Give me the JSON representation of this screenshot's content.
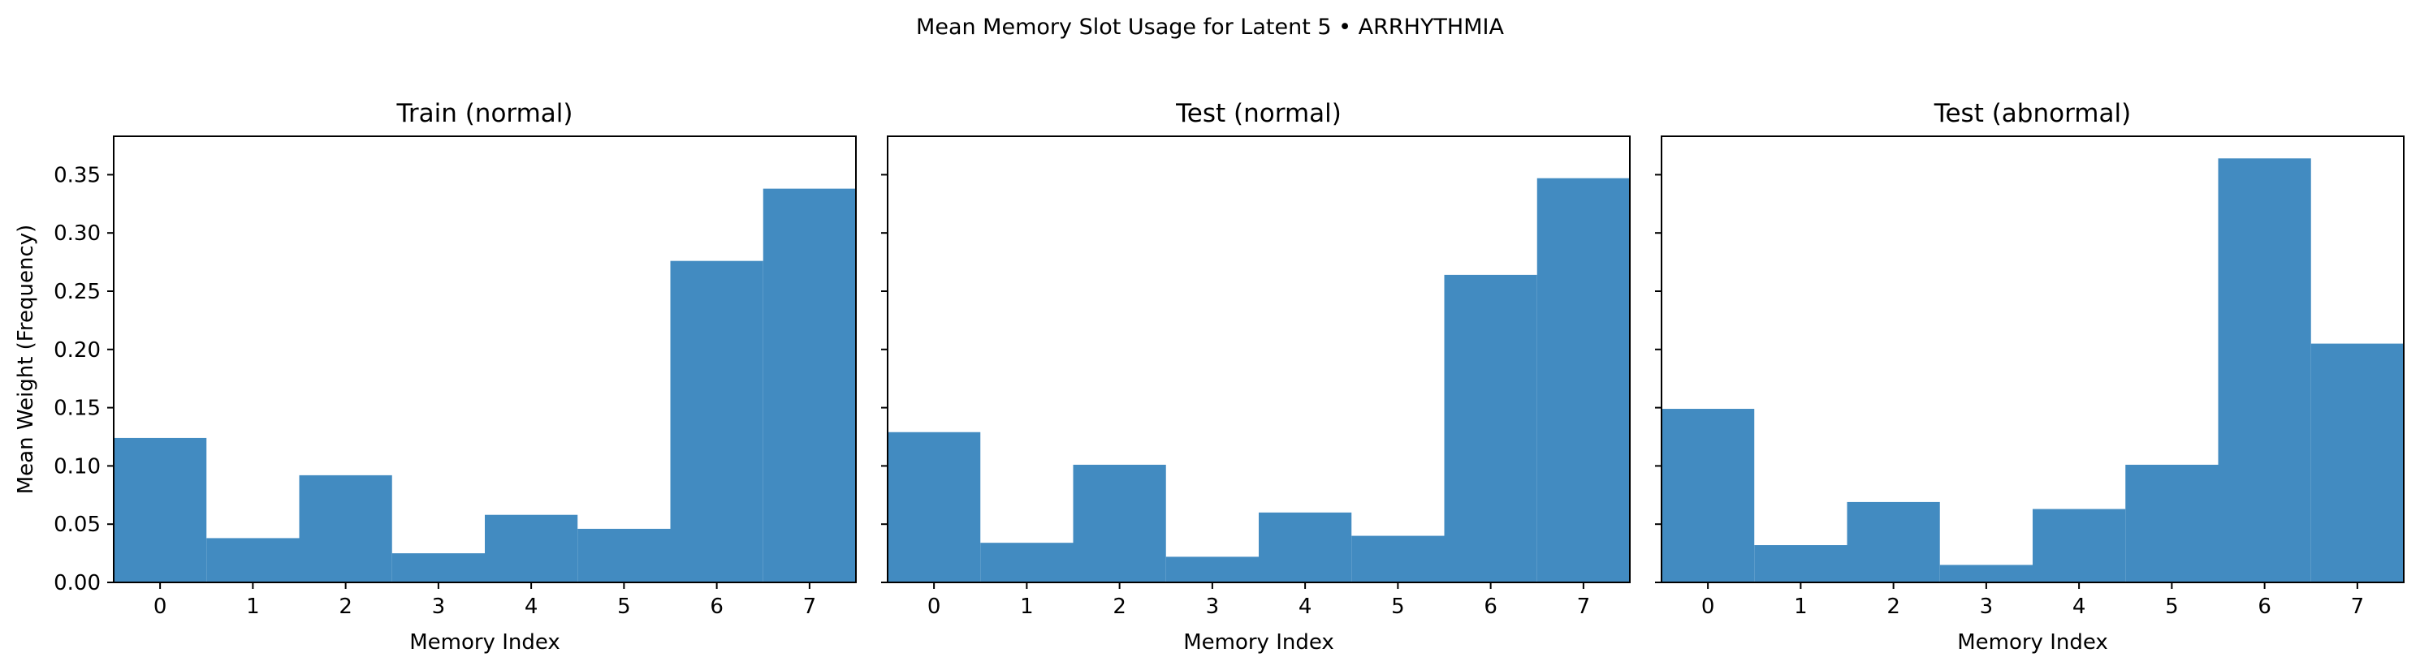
{
  "figure": {
    "suptitle": "Mean Memory Slot Usage for Latent 5 • ARRHYTHMIA"
  },
  "chart_data": [
    {
      "type": "bar",
      "title": "Train (normal)",
      "xlabel": "Memory Index",
      "ylabel": "Mean Weight (Frequency)",
      "categories": [
        "0",
        "1",
        "2",
        "3",
        "4",
        "5",
        "6",
        "7"
      ],
      "values": [
        0.124,
        0.038,
        0.092,
        0.025,
        0.058,
        0.046,
        0.276,
        0.338
      ],
      "ylim": [
        0,
        0.383
      ],
      "yticks": [
        "0.00",
        "0.05",
        "0.10",
        "0.15",
        "0.20",
        "0.25",
        "0.30",
        "0.35"
      ],
      "grid": false,
      "color": "#428bc1"
    },
    {
      "type": "bar",
      "title": "Test (normal)",
      "xlabel": "Memory Index",
      "ylabel": "",
      "categories": [
        "0",
        "1",
        "2",
        "3",
        "4",
        "5",
        "6",
        "7"
      ],
      "values": [
        0.129,
        0.034,
        0.101,
        0.022,
        0.06,
        0.04,
        0.264,
        0.347
      ],
      "ylim": [
        0,
        0.383
      ],
      "yticks": [],
      "grid": false,
      "color": "#428bc1"
    },
    {
      "type": "bar",
      "title": "Test (abnormal)",
      "xlabel": "Memory Index",
      "ylabel": "",
      "categories": [
        "0",
        "1",
        "2",
        "3",
        "4",
        "5",
        "6",
        "7"
      ],
      "values": [
        0.149,
        0.032,
        0.069,
        0.015,
        0.063,
        0.101,
        0.364,
        0.205
      ],
      "ylim": [
        0,
        0.383
      ],
      "yticks": [],
      "grid": false,
      "color": "#428bc1"
    }
  ]
}
